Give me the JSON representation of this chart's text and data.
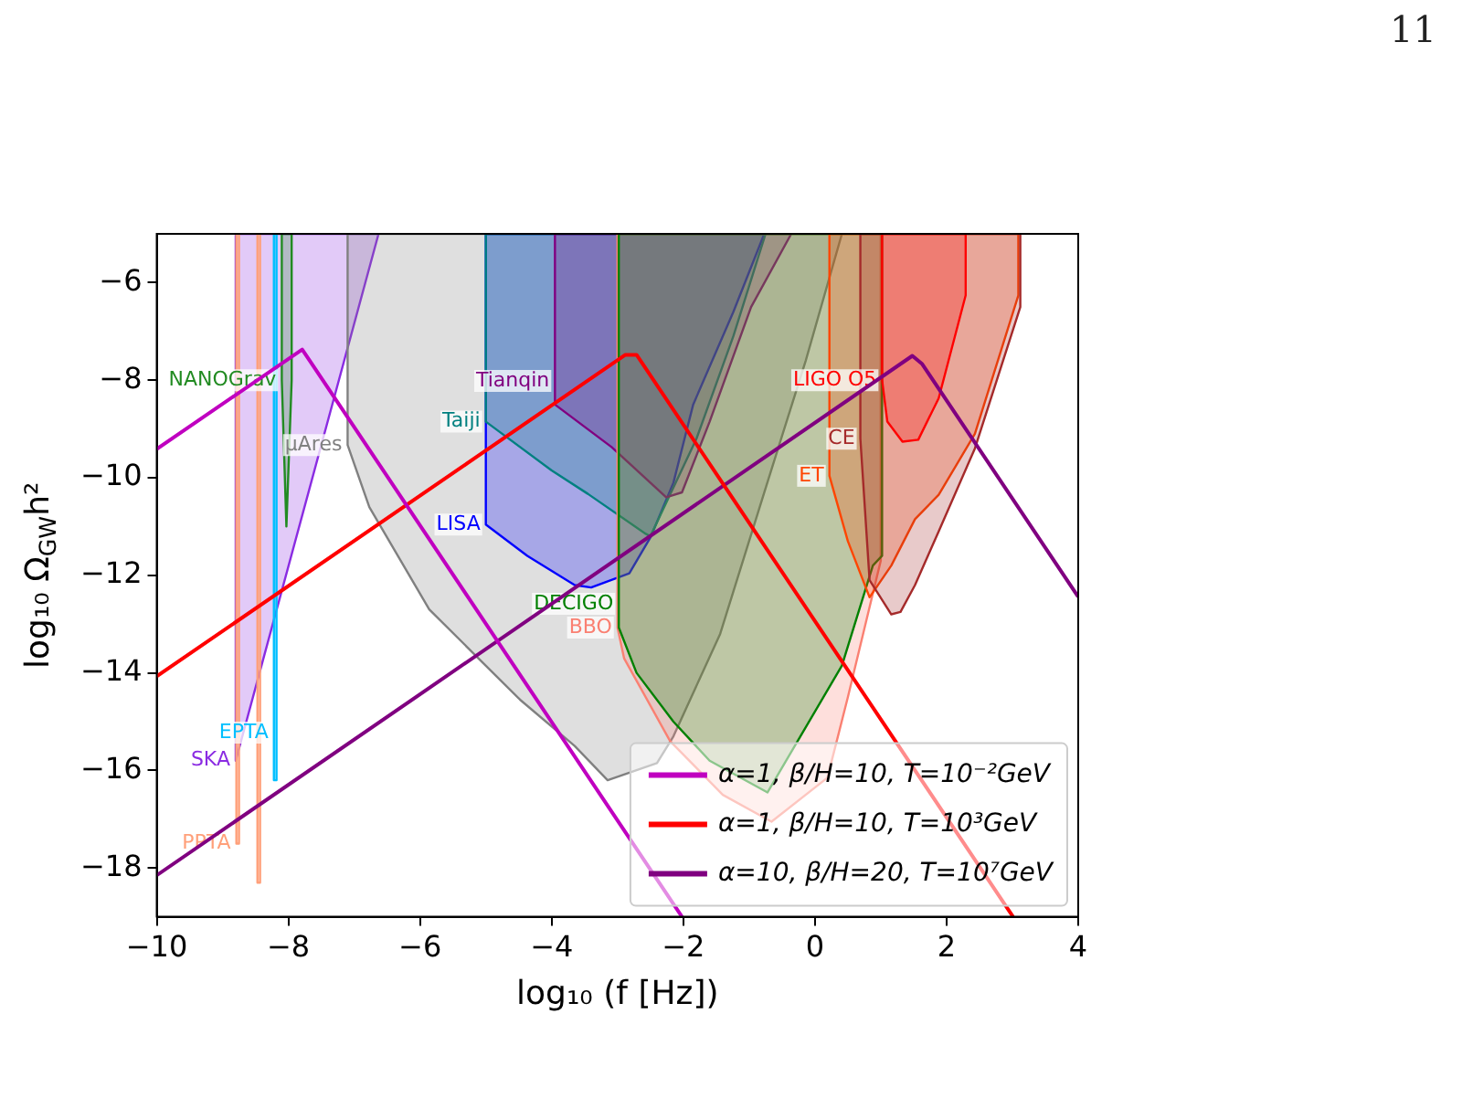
{
  "chart_data": {
    "type": "line",
    "xlabel": "log₁₀ (f [Hz])",
    "ylabel": "log₁₀ Ω$_{GW}$h²",
    "xlim": [
      -10,
      4
    ],
    "ylim": [
      -19,
      -5
    ],
    "xticks": [
      -10,
      -8,
      -6,
      -4,
      -2,
      0,
      2,
      4
    ],
    "yticks": [
      -18,
      -16,
      -14,
      -12,
      -10,
      -8,
      -6
    ],
    "grid": false,
    "legend": "bottom right",
    "marker": "none",
    "series": [
      {
        "type": "area",
        "name": "SKA",
        "color": "#8a2be2",
        "x": [
          -8.8,
          -6.63
        ],
        "values": [
          -15.8,
          -5
        ]
      },
      {
        "type": "area",
        "name": "PPTA",
        "color": "#ffa07a",
        "x": [
          -8.79,
          -8.75
        ],
        "values": [
          -17.5,
          -17.5
        ]
      },
      {
        "type": "area",
        "color": "#ffa07a",
        "x": [
          -8.47,
          -8.43
        ],
        "values": [
          -18.3,
          -18.3
        ]
      },
      {
        "type": "area",
        "name": "EPTA",
        "color": "#00bfff",
        "x": [
          -8.22,
          -8.18
        ],
        "values": [
          -16.2,
          -16.2
        ]
      },
      {
        "type": "area",
        "name": "NANOGrav",
        "color": "#228b22",
        "x": [
          -8.1,
          -8.03,
          -7.95
        ],
        "values": [
          -8,
          -11,
          -8
        ]
      },
      {
        "type": "area",
        "name": "μAres",
        "color": "#808080",
        "x": [
          -7.1,
          -6.77,
          -5.86,
          -4.48,
          -3.65,
          -3.15,
          -2.4,
          -2.15,
          -1.44,
          -0.77,
          -0.14,
          0.41
        ],
        "values": [
          -9.33,
          -10.6,
          -12.7,
          -14.55,
          -15.5,
          -16.2,
          -15.85,
          -15.3,
          -13.2,
          -10.3,
          -7.6,
          -5
        ]
      },
      {
        "type": "area",
        "name": "LISA",
        "color": "#0000ff",
        "x": [
          -5,
          -4.37,
          -3.65,
          -3.4,
          -2.82,
          -2.49,
          -2.15,
          -1.85,
          -1.24,
          -0.77
        ],
        "values": [
          -10.96,
          -11.6,
          -12.2,
          -12.25,
          -11.96,
          -11.2,
          -10.1,
          -8.5,
          -6.6,
          -5
        ]
      },
      {
        "type": "area",
        "name": "Taiji",
        "color": "#008080",
        "x": [
          -5,
          -4,
          -3.45,
          -2.57,
          -2.5,
          -1.8,
          -1.24,
          -0.75
        ],
        "values": [
          -8.85,
          -9.85,
          -10.33,
          -11.15,
          -11.2,
          -9.2,
          -7.1,
          -5
        ]
      },
      {
        "type": "area",
        "name": "Tianqin",
        "color": "#800080",
        "x": [
          -3.95,
          -3.09,
          -2.26,
          -2.02,
          -1.6,
          -0.97,
          -0.36
        ],
        "values": [
          -8.5,
          -9.37,
          -10.4,
          -10.3,
          -8.85,
          -6.5,
          -5
        ]
      },
      {
        "type": "area",
        "name": "BBO",
        "color": "#fa8072",
        "x": [
          -3,
          -2.9,
          -2.2,
          -1.4,
          -0.66,
          0.19,
          0.5,
          1.0
        ],
        "values": [
          -13.07,
          -13.7,
          -15.4,
          -16.5,
          -17.05,
          -16.15,
          -14.5,
          -11.7
        ]
      },
      {
        "type": "area",
        "name": "DECIGO",
        "color": "#008000",
        "x": [
          -2.98,
          -2.71,
          -2.15,
          -1.6,
          -0.72,
          0.41,
          0.88,
          1.02
        ],
        "values": [
          -13.07,
          -14.0,
          -15.0,
          -15.8,
          -16.45,
          -13.85,
          -11.8,
          -11.6
        ]
      },
      {
        "type": "area",
        "name": "ET",
        "color": "#ff4500",
        "x": [
          0.22,
          0.5,
          0.83,
          1.16,
          1.52,
          1.88,
          2.43,
          3.09
        ],
        "values": [
          -9.96,
          -11.3,
          -12.45,
          -11.8,
          -10.85,
          -10.35,
          -9.1,
          -6.26
        ]
      },
      {
        "type": "area",
        "name": "CE",
        "color": "#a52a2a",
        "x": [
          0.69,
          0.83,
          1.16,
          1.3,
          1.52,
          1.88,
          2.43,
          3.12
        ],
        "values": [
          -9.2,
          -12.1,
          -12.8,
          -12.75,
          -12.2,
          -11.1,
          -9.4,
          -6.5
        ]
      },
      {
        "type": "area",
        "name": "LIGO O5",
        "color": "#ff0000",
        "x": [
          1.02,
          1.1,
          1.33,
          1.57,
          1.88,
          2.29
        ],
        "values": [
          -8.0,
          -8.85,
          -9.26,
          -9.22,
          -8.37,
          -6.26
        ]
      },
      {
        "type": "line",
        "name": "α=1, β/H=10, T=10⁻²GeV",
        "color": "#c000c0",
        "x": [
          -10,
          -7.79,
          -7.68,
          -2.02
        ],
        "values": [
          -9.41,
          -7.37,
          -7.59,
          -19
        ]
      },
      {
        "type": "line",
        "name": "α=1, β/H=10, T=10³GeV",
        "color": "#ff0000",
        "x": [
          -10,
          -2.88,
          -2.71,
          3.01
        ],
        "values": [
          -14.07,
          -7.48,
          -7.48,
          -19
        ]
      },
      {
        "type": "line",
        "name": "α=10, β/H=20, T=10⁷GeV",
        "color": "#800080",
        "x": [
          -10,
          1.48,
          1.63,
          4
        ],
        "values": [
          -18.15,
          -7.5,
          -7.67,
          -12.44
        ]
      }
    ],
    "annotations": [
      "11"
    ]
  }
}
